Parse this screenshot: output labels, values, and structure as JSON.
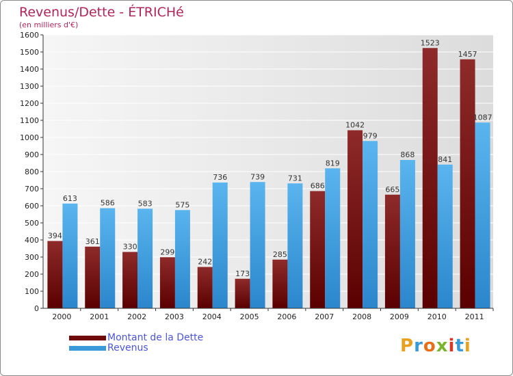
{
  "title": "Revenus/Dette - ÉTRICHé",
  "subtitle": "(en milliers d'€)",
  "chart_data": {
    "type": "bar",
    "categories": [
      "2000",
      "2001",
      "2002",
      "2003",
      "2004",
      "2005",
      "2006",
      "2007",
      "2008",
      "2009",
      "2010",
      "2011"
    ],
    "series": [
      {
        "name": "Montant de la Dette",
        "values": [
          394,
          361,
          330,
          299,
          242,
          173,
          285,
          686,
          1042,
          665,
          1523,
          1457
        ],
        "color": "#8b1a1a"
      },
      {
        "name": "Revenus",
        "values": [
          613,
          586,
          583,
          575,
          736,
          739,
          731,
          819,
          979,
          868,
          841,
          1087
        ],
        "color": "#4aa8e8"
      }
    ],
    "ylim": [
      0,
      1600
    ],
    "yticks": [
      0,
      100,
      200,
      300,
      400,
      500,
      600,
      700,
      800,
      900,
      1000,
      1100,
      1200,
      1300,
      1400,
      1500,
      1600
    ],
    "grid": true
  },
  "legend": {
    "debt_label": "Montant de la Dette",
    "revenue_label": "Revenus",
    "debt_color": "#6e0a0a",
    "revenue_color": "#3a9ad9"
  },
  "logo": {
    "letters": [
      "P",
      "r",
      "o",
      "x",
      "i",
      "t",
      "i"
    ]
  }
}
